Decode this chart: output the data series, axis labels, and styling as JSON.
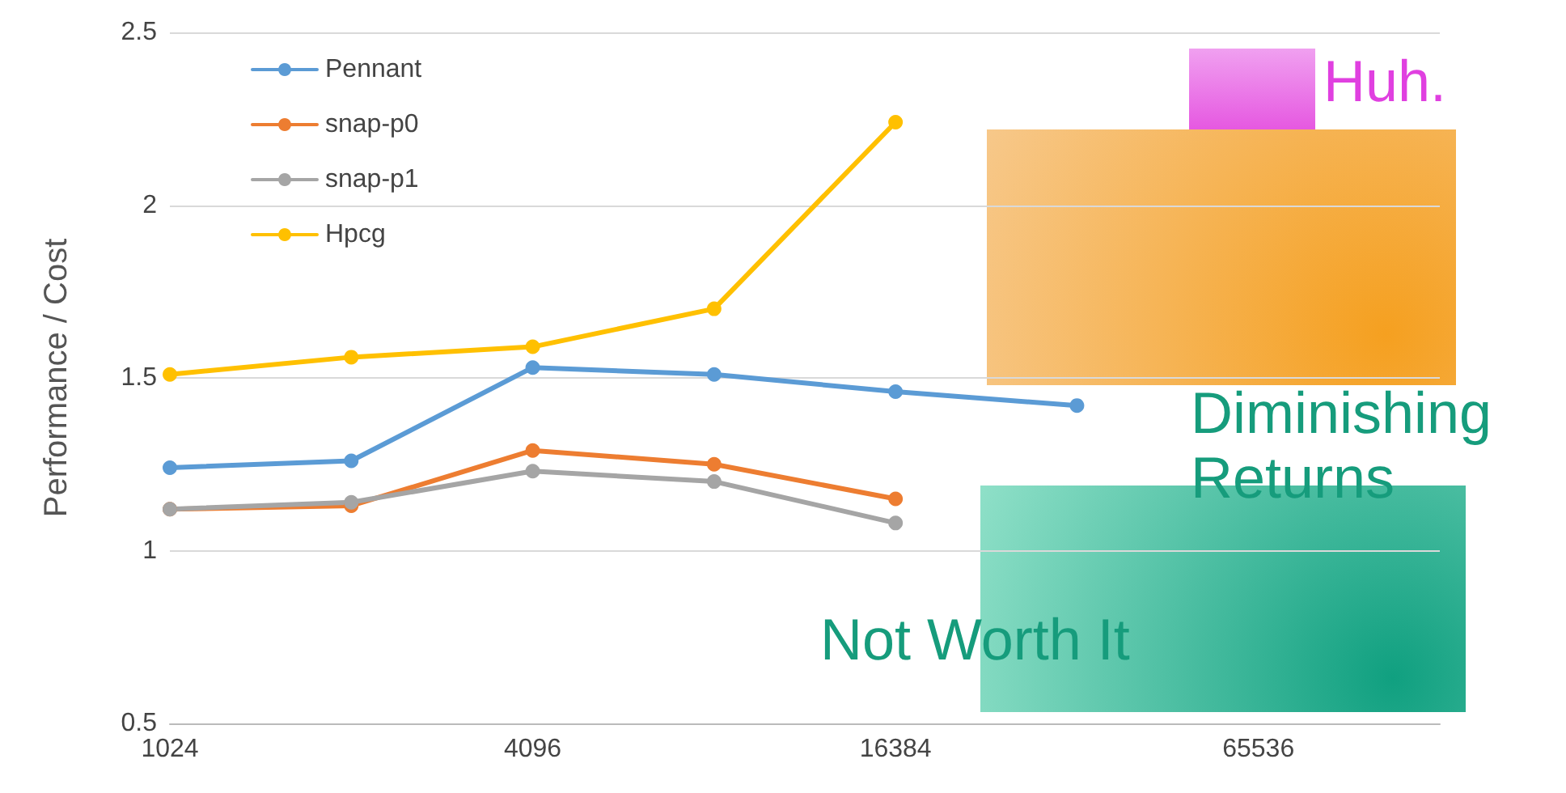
{
  "chart_data": {
    "type": "line",
    "ylabel": "Performance / Cost",
    "x": [
      1024,
      2048,
      4096,
      8192,
      16384,
      32768
    ],
    "series": [
      {
        "name": "Pennant",
        "color": "#5b9bd5",
        "values": [
          1.24,
          1.26,
          1.53,
          1.51,
          1.46,
          1.42
        ]
      },
      {
        "name": "snap-p0",
        "color": "#ed7d31",
        "values": [
          1.12,
          1.13,
          1.29,
          1.25,
          1.15,
          null
        ]
      },
      {
        "name": "snap-p1",
        "color": "#a5a5a5",
        "values": [
          1.12,
          1.14,
          1.23,
          1.2,
          1.08,
          null
        ]
      },
      {
        "name": "Hpcg",
        "color": "#ffc000",
        "values": [
          1.51,
          1.56,
          1.59,
          1.7,
          2.24,
          null
        ]
      }
    ],
    "xlim": [
      1024,
      131072
    ],
    "xticks": [
      1024,
      4096,
      16384,
      65536
    ],
    "ylim": [
      0.5,
      2.5
    ],
    "yticks": [
      0.5,
      1,
      1.5,
      2,
      2.5
    ],
    "log": "x",
    "grid": "y",
    "legend": "top left",
    "marker": "circle",
    "line_style": "solid",
    "annotations": [
      "Huh.",
      "Diminishing Returns",
      "Not Worth It"
    ]
  }
}
